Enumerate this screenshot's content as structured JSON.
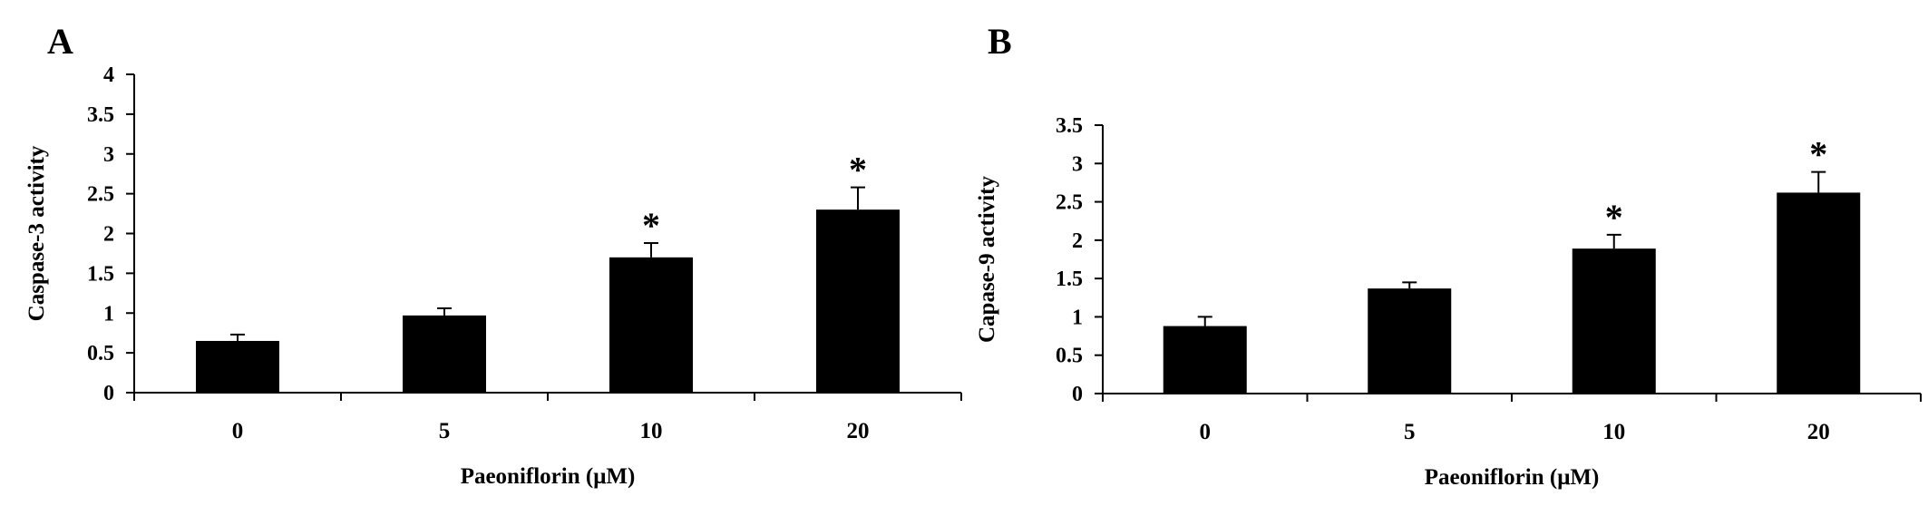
{
  "chart_data": [
    {
      "panel": "A",
      "type": "bar",
      "categories": [
        "0",
        "5",
        "10",
        "20"
      ],
      "values": [
        0.65,
        0.97,
        1.7,
        2.3
      ],
      "errors": [
        0.08,
        0.09,
        0.18,
        0.28
      ],
      "significance": [
        "",
        "",
        "*",
        "*"
      ],
      "xlabel": "Paeoniflorin (μM)",
      "ylabel": "Caspase-3 activity",
      "ylim": [
        0,
        4
      ],
      "yticks": [
        "0",
        "0.5",
        "1",
        "1.5",
        "2",
        "2.5",
        "3",
        "3.5",
        "4"
      ],
      "bar_color": "#000000",
      "grid": false
    },
    {
      "panel": "B",
      "type": "bar",
      "categories": [
        "0",
        "5",
        "10",
        "20"
      ],
      "values": [
        0.88,
        1.37,
        1.89,
        2.62
      ],
      "errors": [
        0.12,
        0.08,
        0.18,
        0.27
      ],
      "significance": [
        "",
        "",
        "*",
        "*"
      ],
      "xlabel": "Paeoniflorin (μM)",
      "ylabel": "Capase-9 activity",
      "ylim": [
        0,
        3.5
      ],
      "yticks": [
        "0",
        "0.5",
        "1",
        "1.5",
        "2",
        "2.5",
        "3",
        "3.5"
      ],
      "bar_color": "#000000",
      "grid": false
    }
  ]
}
